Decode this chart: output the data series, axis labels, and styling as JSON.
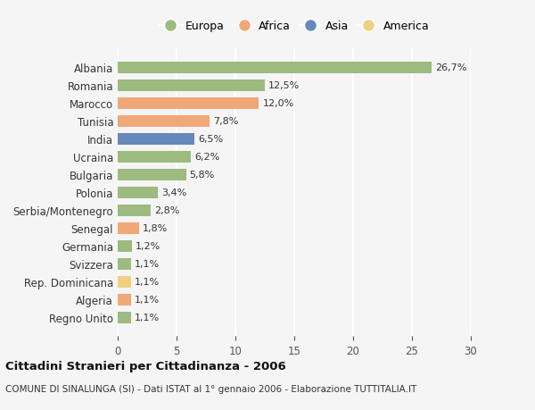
{
  "countries": [
    "Albania",
    "Romania",
    "Marocco",
    "Tunisia",
    "India",
    "Ucraina",
    "Bulgaria",
    "Polonia",
    "Serbia/Montenegro",
    "Senegal",
    "Germania",
    "Svizzera",
    "Rep. Dominicana",
    "Algeria",
    "Regno Unito"
  ],
  "values": [
    26.7,
    12.5,
    12.0,
    7.8,
    6.5,
    6.2,
    5.8,
    3.4,
    2.8,
    1.8,
    1.2,
    1.1,
    1.1,
    1.1,
    1.1
  ],
  "labels": [
    "26,7%",
    "12,5%",
    "12,0%",
    "7,8%",
    "6,5%",
    "6,2%",
    "5,8%",
    "3,4%",
    "2,8%",
    "1,8%",
    "1,2%",
    "1,1%",
    "1,1%",
    "1,1%",
    "1,1%"
  ],
  "continents": [
    "Europa",
    "Europa",
    "Africa",
    "Africa",
    "Asia",
    "Europa",
    "Europa",
    "Europa",
    "Europa",
    "Africa",
    "Europa",
    "Europa",
    "America",
    "Africa",
    "Europa"
  ],
  "continent_colors": {
    "Europa": "#9dba7f",
    "Africa": "#f0a878",
    "Asia": "#6688bb",
    "America": "#f0d080"
  },
  "legend_order": [
    "Europa",
    "Africa",
    "Asia",
    "America"
  ],
  "bg_color": "#f5f5f5",
  "grid_color": "#ffffff",
  "title": "Cittadini Stranieri per Cittadinanza - 2006",
  "subtitle": "COMUNE DI SINALUNGA (SI) - Dati ISTAT al 1° gennaio 2006 - Elaborazione TUTTITALIA.IT",
  "xlim": [
    0,
    30
  ],
  "xticks": [
    0,
    5,
    10,
    15,
    20,
    25,
    30
  ]
}
